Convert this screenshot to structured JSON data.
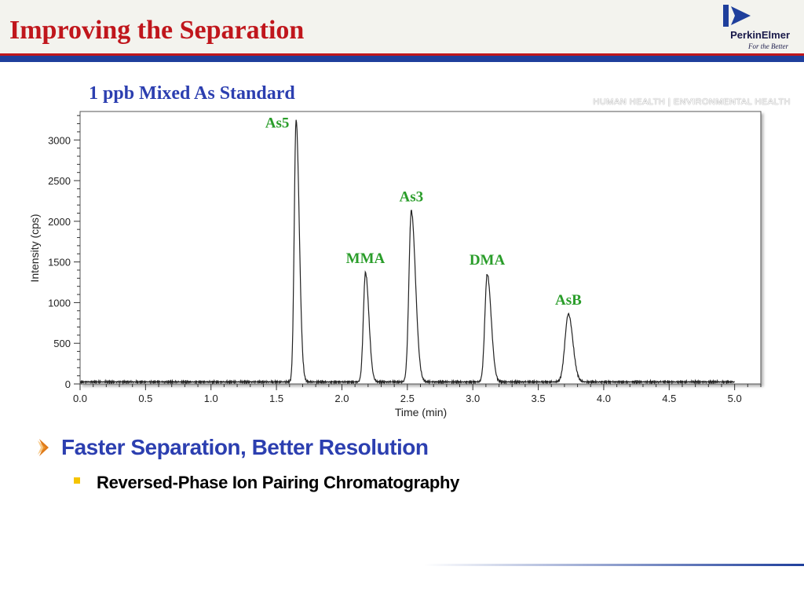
{
  "slide": {
    "title": "Improving the Separation",
    "logo_brand": "PerkinElmer",
    "logo_tagline": "For the Better",
    "division_tagline": "HUMAN HEALTH  |  ENVIRONMENTAL HEALTH",
    "bullet_main": "Faster Separation, Better Resolution",
    "bullet_sub": "Reversed-Phase Ion Pairing Chromatography",
    "colors": {
      "title": "#c0161c",
      "accent_bar": "#1f3f9c",
      "bullet_text": "#2c3fb0",
      "peak_labels": "#2a9d2a",
      "chart_title": "#2c3fb0",
      "trace": "#222222"
    }
  },
  "chart_data": {
    "type": "line",
    "title": "1 ppb Mixed As Standard",
    "xlabel": "Time (min)",
    "ylabel": "Intensity (cps)",
    "xlim": [
      0.0,
      5.2
    ],
    "ylim": [
      0,
      3350
    ],
    "x_ticks": [
      "0.0",
      "0.5",
      "1.0",
      "1.5",
      "2.0",
      "2.5",
      "3.0",
      "3.5",
      "4.0",
      "4.5",
      "5.0"
    ],
    "x_tick_values": [
      0.0,
      0.5,
      1.0,
      1.5,
      2.0,
      2.5,
      3.0,
      3.5,
      4.0,
      4.5,
      5.0
    ],
    "y_ticks": [
      "0",
      "500",
      "1000",
      "1500",
      "2000",
      "2500",
      "3000"
    ],
    "y_tick_values": [
      0,
      500,
      1000,
      1500,
      2000,
      2500,
      3000
    ],
    "grid": false,
    "baseline": 25,
    "x_end": 5.0,
    "peaks": [
      {
        "name": "As5",
        "x": 1.65,
        "y": 3250,
        "sigma_left": 0.014,
        "sigma_right": 0.024
      },
      {
        "name": "MMA",
        "x": 2.18,
        "y": 1370,
        "sigma_left": 0.016,
        "sigma_right": 0.026
      },
      {
        "name": "As3",
        "x": 2.53,
        "y": 2130,
        "sigma_left": 0.018,
        "sigma_right": 0.032
      },
      {
        "name": "DMA",
        "x": 3.11,
        "y": 1350,
        "sigma_left": 0.018,
        "sigma_right": 0.03
      },
      {
        "name": "AsB",
        "x": 3.73,
        "y": 860,
        "sigma_left": 0.026,
        "sigma_right": 0.034
      }
    ]
  }
}
